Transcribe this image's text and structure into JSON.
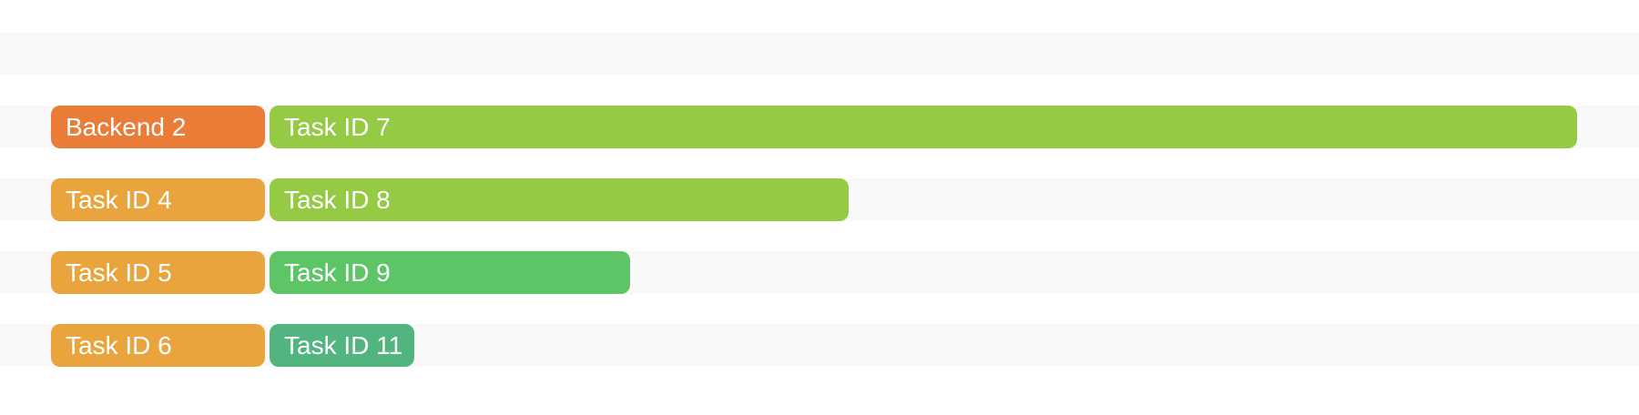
{
  "colors": {
    "backend": "#ea7c38",
    "task_orange": "#eaa43e",
    "task_lime": "#94ca44",
    "task_green": "#5ec566",
    "task_teal": "#52b47f",
    "band": "#f9f9f9"
  },
  "tasks": [
    {
      "label": "Backend 2",
      "color": "#ea7c38"
    },
    {
      "label": "Task ID 7",
      "color": "#94ca44"
    },
    {
      "label": "Task ID 4",
      "color": "#eaa43e"
    },
    {
      "label": "Task ID 8",
      "color": "#94ca44"
    },
    {
      "label": "Task ID 5",
      "color": "#eaa43e"
    },
    {
      "label": "Task ID 9",
      "color": "#5ec566"
    },
    {
      "label": "Task ID 6",
      "color": "#eaa43e"
    },
    {
      "label": "Task ID 11",
      "color": "#52b47f"
    }
  ]
}
